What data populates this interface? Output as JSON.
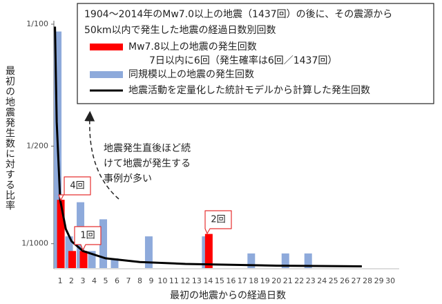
{
  "chart_data": {
    "type": "bar",
    "title": [
      "1904～2014年のMw7.0以上の地震（1437回）の後に、その震源から",
      "50km以内で発生した地震の経過日数別回数"
    ],
    "x_label": "最初の地震からの経過日数",
    "y_label": "最初の地震発生数に対する比率",
    "x": [
      1,
      2,
      3,
      4,
      5,
      6,
      7,
      8,
      9,
      10,
      11,
      12,
      13,
      14,
      15,
      16,
      17,
      18,
      19,
      20,
      21,
      22,
      23,
      24,
      25,
      26,
      27,
      28,
      29,
      30
    ],
    "xlim": [
      0.45,
      30.6
    ],
    "ylim": [
      0,
      0.01
    ],
    "yticks": [
      {
        "value": 0.01,
        "label": "1/100"
      },
      {
        "value": 0.005,
        "label": "1/200"
      },
      {
        "value": 0.001,
        "label": "1/1000"
      }
    ],
    "legend": "top-right",
    "series": [
      {
        "name": "同規模以上の地震の発生回数",
        "color": "#8eaadb",
        "values": [
          0.0097,
          0.0013,
          0.0027,
          0.0007,
          0.002,
          0.0004,
          null,
          null,
          0.0013,
          null,
          null,
          null,
          null,
          0.0013,
          null,
          null,
          null,
          0.0006,
          null,
          null,
          0.0006,
          null,
          0.0006,
          null,
          null,
          null,
          null,
          null,
          null,
          null
        ]
      },
      {
        "name": "Mw7.8以上の地震の発生回数",
        "color": "#ff0000",
        "values": [
          0.0028,
          0.0007,
          0.0007,
          null,
          null,
          null,
          null,
          null,
          null,
          null,
          null,
          null,
          null,
          0.0014,
          null,
          null,
          null,
          null,
          null,
          null,
          null,
          null,
          null,
          null,
          null,
          null,
          null,
          null,
          null,
          null
        ]
      }
    ],
    "model": {
      "name": "地震活動を定量化した統計モデルから計算した発生回数",
      "color": "#000000",
      "x": [
        0.55,
        0.7,
        1,
        1.5,
        2,
        3,
        5,
        8,
        12,
        20,
        27.5
      ],
      "values": [
        0.0099,
        0.006,
        0.0028,
        0.0016,
        0.0011,
        0.0007,
        0.0004,
        0.00025,
        0.00017,
        0.0001,
        7e-05
      ]
    },
    "annotations": {
      "note": "7日以内に6回（発生確率は6回／1437回）",
      "arrow_text": [
        "地震発生直後ほど続",
        "けて地震が発生する",
        "事例が多い"
      ],
      "callouts": [
        "4回",
        "1回",
        "2回"
      ]
    }
  }
}
